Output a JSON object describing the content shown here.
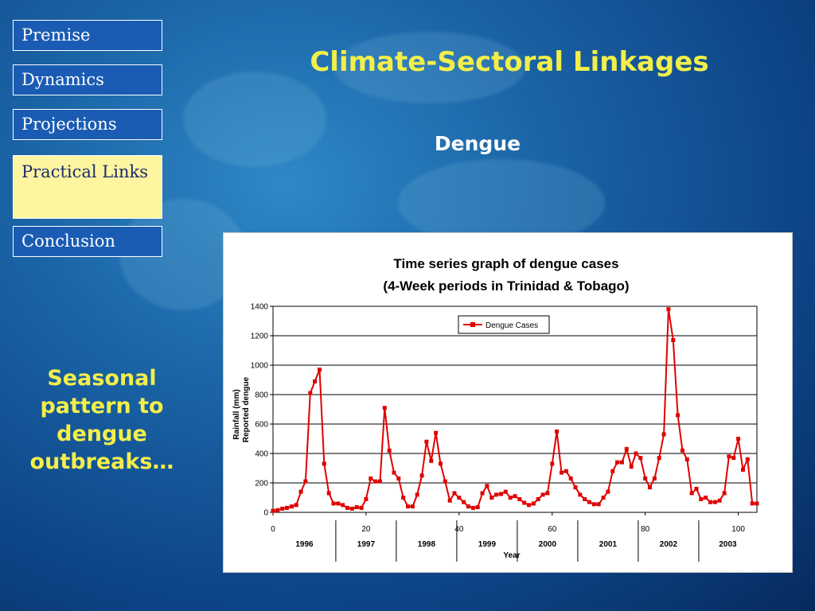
{
  "nav": {
    "items": [
      {
        "label": "Premise",
        "active": false
      },
      {
        "label": "Dynamics",
        "active": false
      },
      {
        "label": "Projections",
        "active": false
      },
      {
        "label": "Practical Links",
        "active": true
      },
      {
        "label": "Conclusion",
        "active": false
      }
    ]
  },
  "slide": {
    "title": "Climate-Sectoral Linkages",
    "subtitle": "Dengue",
    "side_note": "Seasonal pattern to dengue outbreaks…"
  },
  "colors": {
    "title": "#f3ef4a",
    "nav_bg": "#1a5cb3",
    "nav_active_bg": "#fdf5a0",
    "series": "#e00000"
  },
  "chart_data": {
    "type": "line",
    "title": "Time series graph of dengue cases",
    "subtitle": "(4-Week periods in Trinidad & Tobago)",
    "xlabel": "Year",
    "ylabel_lines": [
      "Rainfall   (mm)",
      "Reported  dengue"
    ],
    "xlim": [
      0,
      104
    ],
    "ylim": [
      0,
      1400
    ],
    "x_ticks": [
      0,
      20,
      40,
      60,
      80,
      100
    ],
    "y_ticks": [
      0,
      200,
      400,
      600,
      800,
      1000,
      1200,
      1400
    ],
    "year_labels": [
      "1996",
      "1997",
      "1998",
      "1999",
      "2000",
      "2001",
      "2002",
      "2003"
    ],
    "year_bounds": [
      13.5,
      26.5,
      39.5,
      52.5,
      65.5,
      78.5,
      91.5
    ],
    "grid": true,
    "legend_position": "top-center",
    "series": [
      {
        "name": "Dengue Cases",
        "color": "#e00000",
        "x": [
          0,
          1,
          2,
          3,
          4,
          5,
          6,
          7,
          8,
          9,
          10,
          11,
          12,
          13,
          14,
          15,
          16,
          17,
          18,
          19,
          20,
          21,
          22,
          23,
          24,
          25,
          26,
          27,
          28,
          29,
          30,
          31,
          32,
          33,
          34,
          35,
          36,
          37,
          38,
          39,
          40,
          41,
          42,
          43,
          44,
          45,
          46,
          47,
          48,
          49,
          50,
          51,
          52,
          53,
          54,
          55,
          56,
          57,
          58,
          59,
          60,
          61,
          62,
          63,
          64,
          65,
          66,
          67,
          68,
          69,
          70,
          71,
          72,
          73,
          74,
          75,
          76,
          77,
          78,
          79,
          80,
          81,
          82,
          83,
          84,
          85,
          86,
          87,
          88,
          89,
          90,
          91,
          92,
          93,
          94,
          95,
          96,
          97,
          98,
          99,
          100,
          101,
          102,
          103,
          104
        ],
        "values": [
          10,
          15,
          25,
          30,
          40,
          50,
          140,
          210,
          810,
          890,
          970,
          330,
          130,
          60,
          60,
          50,
          30,
          25,
          35,
          30,
          90,
          230,
          210,
          210,
          710,
          420,
          270,
          230,
          100,
          40,
          40,
          120,
          250,
          480,
          350,
          540,
          330,
          210,
          80,
          130,
          100,
          70,
          40,
          30,
          35,
          130,
          180,
          100,
          120,
          125,
          140,
          100,
          110,
          90,
          65,
          50,
          60,
          90,
          120,
          130,
          330,
          550,
          270,
          280,
          230,
          170,
          120,
          90,
          70,
          55,
          55,
          100,
          140,
          280,
          340,
          340,
          430,
          310,
          400,
          370,
          230,
          170,
          230,
          370,
          530,
          1380,
          1170,
          660,
          420,
          360,
          130,
          160,
          90,
          100,
          70,
          70,
          80,
          130,
          380,
          370,
          500,
          290,
          360,
          60,
          60
        ]
      }
    ]
  }
}
